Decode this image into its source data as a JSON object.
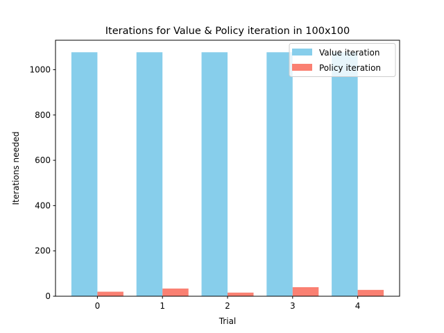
{
  "chart_data": {
    "type": "bar",
    "title": "Iterations for Value & Policy iteration in 100x100",
    "xlabel": "Trial",
    "ylabel": "Iterations needed",
    "categories": [
      "0",
      "1",
      "2",
      "3",
      "4"
    ],
    "series": [
      {
        "name": "Value iteration",
        "color": "#87ceeb",
        "values": [
          1077,
          1077,
          1077,
          1077,
          1077
        ]
      },
      {
        "name": "Policy iteration",
        "color": "#fa8072",
        "values": [
          20,
          34,
          16,
          40,
          28
        ]
      }
    ],
    "ylim": [
      0,
      1130
    ],
    "yticks": [
      0,
      200,
      400,
      600,
      800,
      1000
    ],
    "grid": false,
    "legend_position": "top-right"
  }
}
